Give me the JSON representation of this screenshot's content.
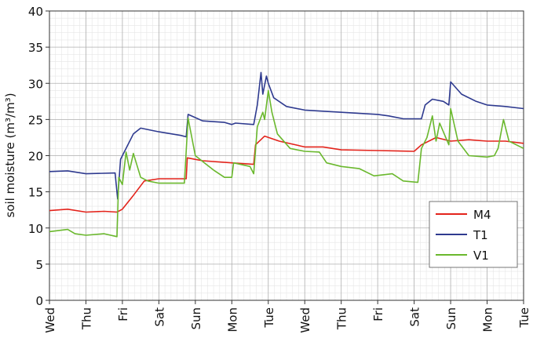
{
  "chart_data": {
    "type": "line",
    "y_label": "soil moisture (m³/m³)",
    "xlim": [
      0,
      13
    ],
    "ylim": [
      0,
      40
    ],
    "xticks": [
      {
        "value": 0,
        "label": "Wed"
      },
      {
        "value": 1,
        "label": "Thu"
      },
      {
        "value": 2,
        "label": "Fri"
      },
      {
        "value": 3,
        "label": "Sat"
      },
      {
        "value": 4,
        "label": "Sun"
      },
      {
        "value": 5,
        "label": "Mon"
      },
      {
        "value": 6,
        "label": "Tue"
      },
      {
        "value": 7,
        "label": "Wed"
      },
      {
        "value": 8,
        "label": "Thu"
      },
      {
        "value": 9,
        "label": "Fri"
      },
      {
        "value": 10,
        "label": "Sat"
      },
      {
        "value": 11,
        "label": "Sun"
      },
      {
        "value": 12,
        "label": "Mon"
      },
      {
        "value": 13,
        "label": "Tue"
      }
    ],
    "yticks": [
      0,
      5,
      10,
      15,
      20,
      25,
      30,
      35,
      40
    ],
    "grid": true,
    "minor_grid": true,
    "legend": "lower right",
    "series": [
      {
        "name": "M4",
        "color": "#e3231b",
        "x": [
          0,
          0.5,
          1,
          1.5,
          1.85,
          2.0,
          2.3,
          2.6,
          3.0,
          3.75,
          3.78,
          4.2,
          5.0,
          5.6,
          5.65,
          5.9,
          6.3,
          7.0,
          7.5,
          8.0,
          9.0,
          10.0,
          10.2,
          10.6,
          11.0,
          11.5,
          12.0,
          12.5,
          13
        ],
        "values": [
          12.4,
          12.6,
          12.2,
          12.3,
          12.2,
          12.6,
          14.5,
          16.5,
          16.8,
          16.8,
          19.7,
          19.3,
          19.0,
          18.8,
          21.5,
          22.7,
          22.0,
          21.2,
          21.2,
          20.8,
          20.7,
          20.6,
          21.5,
          22.5,
          22.0,
          22.2,
          22.0,
          22.0,
          21.7
        ]
      },
      {
        "name": "T1",
        "color": "#2e3a8f",
        "x": [
          0,
          0.5,
          1,
          1.8,
          1.87,
          1.95,
          2.3,
          2.5,
          3.0,
          3.6,
          3.75,
          3.8,
          4.2,
          4.8,
          5.0,
          5.1,
          5.6,
          5.7,
          5.8,
          5.85,
          5.95,
          6.0,
          6.15,
          6.5,
          7.0,
          8.0,
          9.0,
          9.3,
          9.7,
          10.2,
          10.3,
          10.5,
          10.8,
          10.95,
          11.0,
          11.3,
          11.7,
          12.0,
          12.5,
          13
        ],
        "values": [
          17.8,
          17.9,
          17.5,
          17.6,
          14,
          19.5,
          23,
          23.8,
          23.3,
          22.8,
          22.6,
          25.7,
          24.8,
          24.6,
          24.3,
          24.5,
          24.3,
          27,
          31.5,
          28.5,
          31,
          30,
          28,
          26.8,
          26.3,
          26,
          25.7,
          25.5,
          25.1,
          25.1,
          27,
          27.8,
          27.5,
          27,
          30.2,
          28.5,
          27.5,
          27,
          26.8,
          26.5
        ]
      },
      {
        "name": "V1",
        "color": "#6ab82d",
        "x": [
          0,
          0.5,
          0.7,
          1.0,
          1.5,
          1.85,
          1.9,
          2.0,
          2.1,
          2.2,
          2.3,
          2.5,
          2.7,
          3.0,
          3.7,
          3.8,
          4.0,
          4.3,
          4.5,
          4.8,
          5.0,
          5.05,
          5.5,
          5.6,
          5.7,
          5.85,
          5.9,
          6.0,
          6.1,
          6.25,
          6.6,
          7.0,
          7.4,
          7.6,
          8.0,
          8.5,
          8.9,
          9.4,
          9.7,
          10.1,
          10.2,
          10.35,
          10.5,
          10.6,
          10.7,
          10.95,
          11.0,
          11.2,
          11.5,
          12.0,
          12.2,
          12.3,
          12.45,
          12.6,
          12.8,
          13
        ],
        "values": [
          9.5,
          9.8,
          9.2,
          9.0,
          9.2,
          8.8,
          17,
          16,
          20.5,
          18,
          20.3,
          17,
          16.5,
          16.2,
          16.2,
          25.2,
          20,
          18.8,
          18,
          17,
          17,
          19,
          18.5,
          17.5,
          24,
          26,
          25,
          29,
          26,
          23,
          21,
          20.6,
          20.5,
          19,
          18.5,
          18.2,
          17.2,
          17.5,
          16.5,
          16.3,
          21,
          22.5,
          25.5,
          22,
          24.5,
          21.5,
          26.5,
          22,
          20,
          19.8,
          20,
          21,
          25,
          22,
          21.5,
          21
        ]
      }
    ]
  }
}
